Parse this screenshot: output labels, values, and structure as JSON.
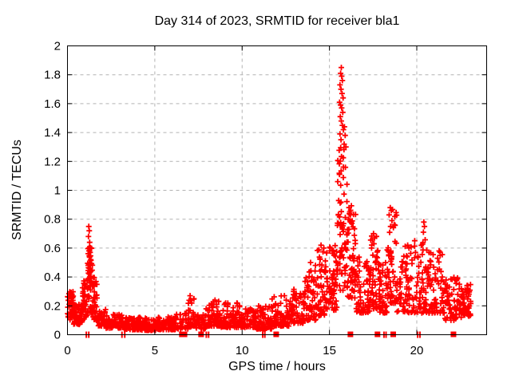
{
  "chart_data": {
    "type": "scatter",
    "title": "Day 314 of 2023, SRMTID for receiver bla1",
    "xlabel": "GPS time / hours",
    "ylabel": "SRMTID / TECUs",
    "xlim": [
      0,
      24
    ],
    "ylim": [
      0,
      2
    ],
    "xticks": {
      "values": [
        0,
        5,
        10,
        15,
        20
      ],
      "labels": [
        "0",
        "5",
        "10",
        "15",
        "20"
      ]
    },
    "yticks": {
      "values": [
        0,
        0.2,
        0.4,
        0.6,
        0.8,
        1.0,
        1.2,
        1.4,
        1.6,
        1.8,
        2.0
      ],
      "labels": [
        "0",
        "0.2",
        "0.4",
        "0.6",
        "0.8",
        "1",
        "1.2",
        "1.4",
        "1.6",
        "1.8",
        "2"
      ]
    },
    "grid": "dashed-both-axes",
    "legend": "none",
    "marker": "plus",
    "series_color": "#ff0000",
    "grid_color": "#b3b3b3",
    "border_color": "#000000",
    "seed": 314,
    "envelope_bins": [
      [
        0.0,
        0.35,
        45,
        0.1,
        0.3,
        1.2
      ],
      [
        0.35,
        0.85,
        55,
        0.07,
        0.22,
        1.5
      ],
      [
        0.85,
        1.15,
        35,
        0.1,
        0.38,
        1.3
      ],
      [
        1.15,
        1.45,
        60,
        0.15,
        0.62,
        1.2
      ],
      [
        1.45,
        1.75,
        40,
        0.1,
        0.4,
        1.6
      ],
      [
        1.75,
        2.2,
        45,
        0.06,
        0.18,
        1.5
      ],
      [
        2.2,
        3.2,
        80,
        0.045,
        0.14,
        1.6
      ],
      [
        3.2,
        4.2,
        85,
        0.035,
        0.12,
        1.6
      ],
      [
        4.2,
        5.2,
        85,
        0.03,
        0.115,
        1.6
      ],
      [
        5.2,
        6.2,
        85,
        0.035,
        0.13,
        1.6
      ],
      [
        6.2,
        6.9,
        30,
        0.04,
        0.15,
        1.6
      ],
      [
        6.9,
        7.25,
        35,
        0.05,
        0.25,
        2.0
      ],
      [
        7.25,
        7.9,
        45,
        0.04,
        0.14,
        1.6
      ],
      [
        7.9,
        8.8,
        70,
        0.06,
        0.24,
        1.8
      ],
      [
        8.8,
        9.9,
        80,
        0.05,
        0.22,
        1.9
      ],
      [
        9.9,
        10.8,
        70,
        0.05,
        0.18,
        1.8
      ],
      [
        10.8,
        11.7,
        65,
        0.04,
        0.2,
        1.9
      ],
      [
        11.7,
        12.7,
        75,
        0.06,
        0.27,
        1.8
      ],
      [
        12.7,
        13.6,
        70,
        0.08,
        0.32,
        1.7
      ],
      [
        13.6,
        14.3,
        60,
        0.1,
        0.45,
        1.7
      ],
      [
        14.3,
        14.9,
        55,
        0.13,
        0.6,
        1.7
      ],
      [
        14.9,
        15.45,
        55,
        0.17,
        0.62,
        1.5
      ],
      [
        15.45,
        16.05,
        75,
        0.3,
        1.3,
        1.1
      ],
      [
        16.05,
        16.5,
        55,
        0.25,
        0.9,
        1.6
      ],
      [
        16.5,
        17.3,
        65,
        0.15,
        0.55,
        1.6
      ],
      [
        17.3,
        17.8,
        50,
        0.18,
        0.7,
        1.6
      ],
      [
        17.8,
        18.3,
        50,
        0.15,
        0.52,
        1.6
      ],
      [
        18.3,
        18.85,
        55,
        0.22,
        0.88,
        1.5
      ],
      [
        18.85,
        19.8,
        70,
        0.15,
        0.62,
        1.7
      ],
      [
        19.8,
        20.6,
        60,
        0.15,
        0.66,
        1.6
      ],
      [
        20.6,
        21.6,
        75,
        0.15,
        0.58,
        1.6
      ],
      [
        21.6,
        22.4,
        65,
        0.1,
        0.4,
        1.6
      ],
      [
        22.4,
        23.1,
        60,
        0.12,
        0.35,
        1.3
      ]
    ],
    "outlier_points": [
      [
        15.68,
        1.85
      ],
      [
        15.64,
        1.81
      ],
      [
        15.7,
        1.79
      ],
      [
        15.74,
        1.76
      ],
      [
        15.6,
        1.73
      ],
      [
        15.66,
        1.7
      ],
      [
        15.72,
        1.67
      ],
      [
        15.78,
        1.64
      ],
      [
        15.58,
        1.61
      ],
      [
        15.64,
        1.59
      ],
      [
        15.7,
        1.57
      ],
      [
        15.76,
        1.54
      ],
      [
        15.62,
        1.51
      ],
      [
        15.68,
        1.48
      ],
      [
        15.74,
        1.45
      ],
      [
        15.8,
        1.42
      ],
      [
        15.86,
        1.44
      ],
      [
        15.9,
        1.38
      ],
      [
        15.6,
        1.39
      ],
      [
        15.66,
        1.35
      ],
      [
        15.84,
        1.32
      ],
      [
        15.94,
        1.3
      ],
      [
        1.22,
        0.75
      ],
      [
        1.25,
        0.72
      ],
      [
        1.2,
        0.68
      ],
      [
        1.27,
        0.64
      ],
      [
        1.24,
        0.6
      ],
      [
        1.3,
        0.57
      ],
      [
        1.33,
        0.52
      ],
      [
        7.02,
        0.27
      ],
      [
        7.06,
        0.24
      ],
      [
        12.42,
        0.27
      ],
      [
        9.7,
        0.22
      ],
      [
        8.45,
        0.24
      ],
      [
        16.12,
        0.88
      ],
      [
        16.16,
        0.85
      ],
      [
        16.2,
        0.83
      ],
      [
        16.1,
        0.8
      ],
      [
        16.24,
        0.78
      ],
      [
        17.52,
        0.7
      ],
      [
        17.58,
        0.67
      ],
      [
        17.55,
        0.63
      ],
      [
        18.48,
        0.88
      ],
      [
        18.54,
        0.86
      ],
      [
        18.42,
        0.83
      ],
      [
        18.58,
        0.79
      ],
      [
        18.5,
        0.75
      ],
      [
        20.4,
        0.78
      ],
      [
        20.44,
        0.75
      ],
      [
        20.38,
        0.71
      ],
      [
        19.48,
        0.62
      ],
      [
        19.55,
        0.6
      ],
      [
        21.28,
        0.58
      ],
      [
        21.34,
        0.55
      ],
      [
        14.52,
        0.62
      ],
      [
        14.68,
        0.6
      ],
      [
        15.05,
        0.6
      ],
      [
        15.15,
        0.58
      ],
      [
        13.92,
        0.5
      ],
      [
        14.2,
        0.48
      ]
    ],
    "zero_axis_markers": {
      "squares": [
        6.55,
        6.7,
        7.65,
        11.95,
        16.2,
        17.75,
        18.65,
        22.1
      ],
      "thin_ticks": [
        1.08,
        1.22,
        3.12,
        3.28,
        7.95,
        8.08,
        11.18,
        11.3,
        18.12,
        18.24,
        20.05,
        20.18
      ]
    }
  }
}
